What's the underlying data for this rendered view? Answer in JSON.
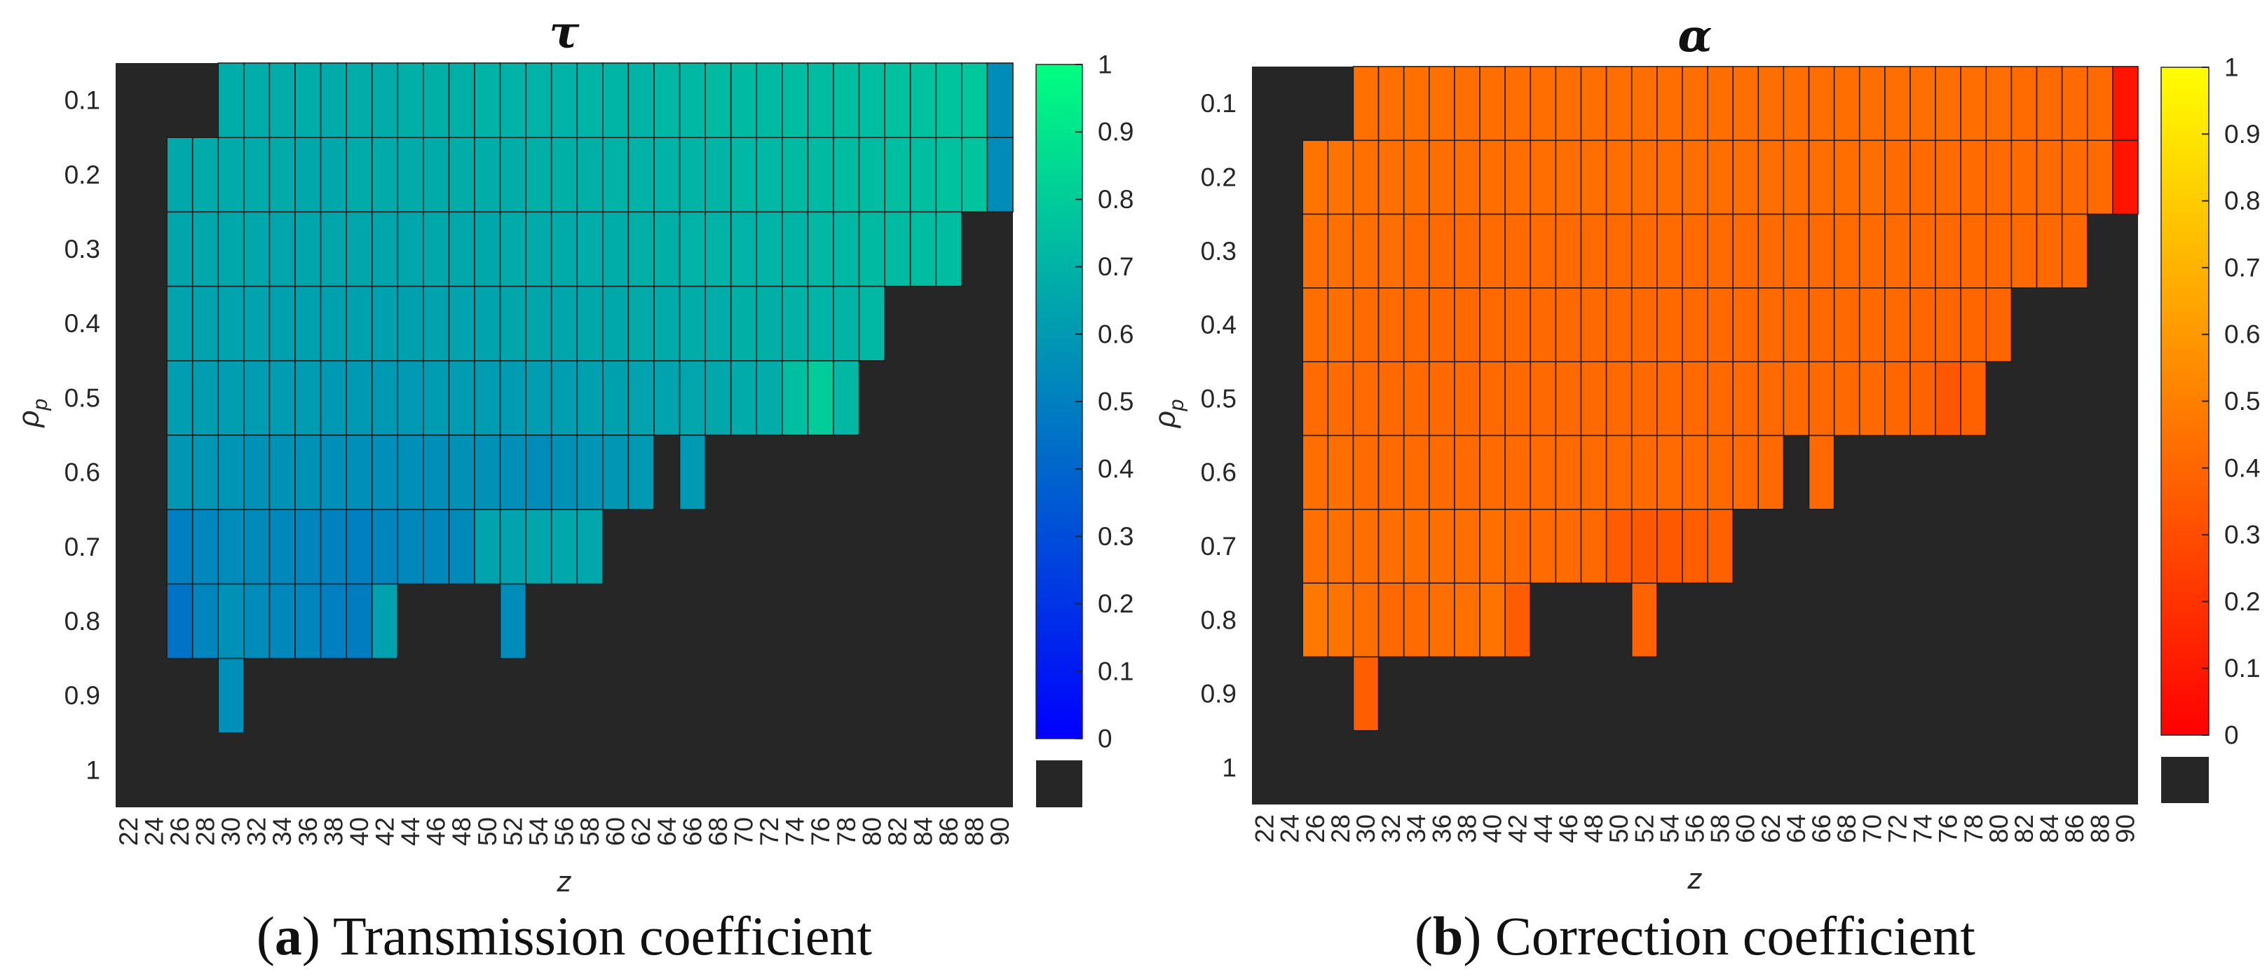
{
  "chart_data": [
    {
      "type": "heatmap",
      "title": "τ",
      "caption_letter": "a",
      "caption_open": "(",
      "caption_close": ")",
      "caption_text": " Transmission coefficient",
      "xlabel": "z",
      "ylabel": "ρ",
      "ylabel_sub": "p",
      "x": [
        22,
        24,
        26,
        28,
        30,
        32,
        34,
        36,
        38,
        40,
        42,
        44,
        46,
        48,
        50,
        52,
        54,
        56,
        58,
        60,
        62,
        64,
        66,
        68,
        70,
        72,
        74,
        76,
        78,
        80,
        82,
        84,
        86,
        88,
        90
      ],
      "y": [
        "0.1",
        "0.2",
        "0.3",
        "0.4",
        "0.5",
        "0.6",
        "0.7",
        "0.8",
        "0.9",
        "1"
      ],
      "colorbar": {
        "range": [
          0,
          1
        ],
        "ticks": [
          "0",
          "0.1",
          "0.2",
          "0.3",
          "0.4",
          "0.5",
          "0.6",
          "0.7",
          "0.8",
          "0.9",
          "1"
        ],
        "colormap": "winter",
        "colors": [
          "#0000ff",
          "#00ff80"
        ],
        "missing_color": "#262626"
      },
      "values": [
        [
          null,
          null,
          null,
          null,
          0.68,
          0.68,
          0.68,
          0.68,
          0.67,
          0.68,
          0.68,
          0.69,
          0.69,
          0.69,
          0.7,
          0.7,
          0.7,
          0.7,
          0.71,
          0.71,
          0.71,
          0.72,
          0.72,
          0.73,
          0.73,
          0.73,
          0.74,
          0.74,
          0.75,
          0.75,
          0.76,
          0.76,
          0.77,
          0.78,
          0.55
        ],
        [
          null,
          null,
          0.66,
          0.67,
          0.67,
          0.67,
          0.67,
          0.66,
          0.66,
          0.67,
          0.67,
          0.67,
          0.67,
          0.68,
          0.68,
          0.68,
          0.69,
          0.69,
          0.69,
          0.7,
          0.7,
          0.7,
          0.71,
          0.71,
          0.72,
          0.72,
          0.73,
          0.73,
          0.74,
          0.74,
          0.75,
          0.75,
          0.76,
          0.77,
          0.55
        ],
        [
          null,
          null,
          0.65,
          0.66,
          0.66,
          0.66,
          0.65,
          0.65,
          0.65,
          0.65,
          0.65,
          0.65,
          0.66,
          0.66,
          0.66,
          0.67,
          0.67,
          0.67,
          0.68,
          0.68,
          0.69,
          0.69,
          0.7,
          0.7,
          0.7,
          0.71,
          0.71,
          0.72,
          0.72,
          0.73,
          0.73,
          0.74,
          0.74,
          null,
          null
        ],
        [
          null,
          null,
          0.64,
          0.64,
          0.64,
          0.64,
          0.63,
          0.63,
          0.63,
          0.63,
          0.63,
          0.63,
          0.64,
          0.64,
          0.64,
          0.65,
          0.65,
          0.65,
          0.66,
          0.66,
          0.67,
          0.67,
          0.68,
          0.68,
          0.69,
          0.69,
          0.7,
          0.71,
          0.71,
          0.72,
          null,
          null,
          null,
          null,
          null
        ],
        [
          null,
          null,
          0.62,
          0.62,
          0.62,
          0.61,
          0.61,
          0.61,
          0.6,
          0.6,
          0.6,
          0.6,
          0.61,
          0.61,
          0.61,
          0.61,
          0.62,
          0.62,
          0.63,
          0.63,
          0.64,
          0.64,
          0.65,
          0.66,
          0.67,
          0.68,
          0.75,
          0.8,
          0.72,
          null,
          null,
          null,
          null,
          null,
          null
        ],
        [
          null,
          null,
          0.59,
          0.59,
          0.58,
          0.57,
          0.57,
          0.57,
          0.56,
          0.56,
          0.56,
          0.56,
          0.56,
          0.57,
          0.57,
          0.56,
          0.55,
          0.57,
          0.58,
          0.59,
          0.6,
          null,
          0.6,
          null,
          null,
          null,
          null,
          null,
          null,
          null,
          null,
          null,
          null,
          null,
          null
        ],
        [
          null,
          null,
          0.5,
          0.53,
          0.55,
          0.54,
          0.53,
          0.52,
          0.51,
          0.5,
          0.52,
          0.53,
          0.53,
          0.54,
          0.64,
          0.64,
          0.65,
          0.66,
          0.66,
          null,
          null,
          null,
          null,
          null,
          null,
          null,
          null,
          null,
          null,
          null,
          null,
          null,
          null,
          null,
          null
        ],
        [
          null,
          null,
          0.45,
          0.52,
          0.57,
          0.55,
          0.53,
          0.52,
          0.5,
          0.49,
          0.63,
          null,
          null,
          null,
          null,
          0.55,
          null,
          null,
          null,
          null,
          null,
          null,
          null,
          null,
          null,
          null,
          null,
          null,
          null,
          null,
          null,
          null,
          null,
          null,
          null
        ],
        [
          null,
          null,
          null,
          null,
          0.56,
          null,
          null,
          null,
          null,
          null,
          null,
          null,
          null,
          null,
          null,
          null,
          null,
          null,
          null,
          null,
          null,
          null,
          null,
          null,
          null,
          null,
          null,
          null,
          null,
          null,
          null,
          null,
          null,
          null,
          null
        ],
        [
          null,
          null,
          null,
          null,
          null,
          null,
          null,
          null,
          null,
          null,
          null,
          null,
          null,
          null,
          null,
          null,
          null,
          null,
          null,
          null,
          null,
          null,
          null,
          null,
          null,
          null,
          null,
          null,
          null,
          null,
          null,
          null,
          null,
          null,
          null
        ]
      ]
    },
    {
      "type": "heatmap",
      "title": "α",
      "caption_letter": "b",
      "caption_open": "(",
      "caption_close": ")",
      "caption_text": " Correction coefficient",
      "xlabel": "z",
      "ylabel": "ρ",
      "ylabel_sub": "p",
      "x": [
        22,
        24,
        26,
        28,
        30,
        32,
        34,
        36,
        38,
        40,
        42,
        44,
        46,
        48,
        50,
        52,
        54,
        56,
        58,
        60,
        62,
        64,
        66,
        68,
        70,
        72,
        74,
        76,
        78,
        80,
        82,
        84,
        86,
        88,
        90
      ],
      "y": [
        "0.1",
        "0.2",
        "0.3",
        "0.4",
        "0.5",
        "0.6",
        "0.7",
        "0.8",
        "0.9",
        "1"
      ],
      "colorbar": {
        "range": [
          0,
          1
        ],
        "ticks": [
          "0",
          "0.1",
          "0.2",
          "0.3",
          "0.4",
          "0.5",
          "0.6",
          "0.7",
          "0.8",
          "0.9",
          "1"
        ],
        "colormap": "autumn",
        "colors": [
          "#ff0000",
          "#ffff00"
        ],
        "missing_color": "#262626"
      },
      "values": [
        [
          null,
          null,
          null,
          null,
          0.44,
          0.44,
          0.44,
          0.44,
          0.43,
          0.43,
          0.43,
          0.43,
          0.43,
          0.43,
          0.43,
          0.43,
          0.43,
          0.43,
          0.43,
          0.43,
          0.43,
          0.43,
          0.43,
          0.43,
          0.43,
          0.43,
          0.43,
          0.43,
          0.43,
          0.43,
          0.42,
          0.42,
          0.42,
          0.42,
          0.08
        ],
        [
          null,
          null,
          0.45,
          0.45,
          0.44,
          0.44,
          0.43,
          0.43,
          0.43,
          0.43,
          0.43,
          0.43,
          0.43,
          0.43,
          0.43,
          0.43,
          0.43,
          0.43,
          0.43,
          0.43,
          0.43,
          0.43,
          0.43,
          0.43,
          0.43,
          0.42,
          0.42,
          0.42,
          0.42,
          0.42,
          0.42,
          0.42,
          0.42,
          0.42,
          0.08
        ],
        [
          null,
          null,
          0.44,
          0.44,
          0.43,
          0.43,
          0.42,
          0.42,
          0.42,
          0.42,
          0.42,
          0.42,
          0.42,
          0.42,
          0.42,
          0.42,
          0.42,
          0.42,
          0.42,
          0.42,
          0.42,
          0.42,
          0.42,
          0.42,
          0.42,
          0.42,
          0.41,
          0.41,
          0.41,
          0.41,
          0.41,
          0.41,
          0.41,
          null,
          null
        ],
        [
          null,
          null,
          0.43,
          0.43,
          0.42,
          0.42,
          0.41,
          0.41,
          0.41,
          0.41,
          0.41,
          0.41,
          0.41,
          0.41,
          0.41,
          0.41,
          0.41,
          0.41,
          0.41,
          0.41,
          0.41,
          0.41,
          0.41,
          0.41,
          0.41,
          0.41,
          0.4,
          0.4,
          0.4,
          0.4,
          null,
          null,
          null,
          null,
          null
        ],
        [
          null,
          null,
          0.42,
          0.42,
          0.42,
          0.41,
          0.41,
          0.41,
          0.41,
          0.41,
          0.41,
          0.41,
          0.41,
          0.41,
          0.41,
          0.41,
          0.41,
          0.41,
          0.41,
          0.41,
          0.41,
          0.41,
          0.41,
          0.41,
          0.41,
          0.4,
          0.39,
          0.34,
          0.38,
          null,
          null,
          null,
          null,
          null,
          null
        ],
        [
          null,
          null,
          0.43,
          0.43,
          0.42,
          0.42,
          0.42,
          0.42,
          0.42,
          0.42,
          0.42,
          0.42,
          0.42,
          0.42,
          0.42,
          0.42,
          0.42,
          0.42,
          0.41,
          0.41,
          0.41,
          null,
          0.41,
          null,
          null,
          null,
          null,
          null,
          null,
          null,
          null,
          null,
          null,
          null,
          null
        ],
        [
          null,
          null,
          0.44,
          0.44,
          0.43,
          0.43,
          0.43,
          0.43,
          0.43,
          0.43,
          0.42,
          0.42,
          0.42,
          0.41,
          0.36,
          0.35,
          0.35,
          0.37,
          0.38,
          null,
          null,
          null,
          null,
          null,
          null,
          null,
          null,
          null,
          null,
          null,
          null,
          null,
          null,
          null,
          null
        ],
        [
          null,
          null,
          0.47,
          0.45,
          0.43,
          0.41,
          0.42,
          0.43,
          0.44,
          0.45,
          0.36,
          null,
          null,
          null,
          null,
          0.39,
          null,
          null,
          null,
          null,
          null,
          null,
          null,
          null,
          null,
          null,
          null,
          null,
          null,
          null,
          null,
          null,
          null,
          null,
          null
        ],
        [
          null,
          null,
          null,
          null,
          0.37,
          null,
          null,
          null,
          null,
          null,
          null,
          null,
          null,
          null,
          null,
          null,
          null,
          null,
          null,
          null,
          null,
          null,
          null,
          null,
          null,
          null,
          null,
          null,
          null,
          null,
          null,
          null,
          null,
          null,
          null
        ],
        [
          null,
          null,
          null,
          null,
          null,
          null,
          null,
          null,
          null,
          null,
          null,
          null,
          null,
          null,
          null,
          null,
          null,
          null,
          null,
          null,
          null,
          null,
          null,
          null,
          null,
          null,
          null,
          null,
          null,
          null,
          null,
          null,
          null,
          null,
          null
        ]
      ]
    }
  ]
}
